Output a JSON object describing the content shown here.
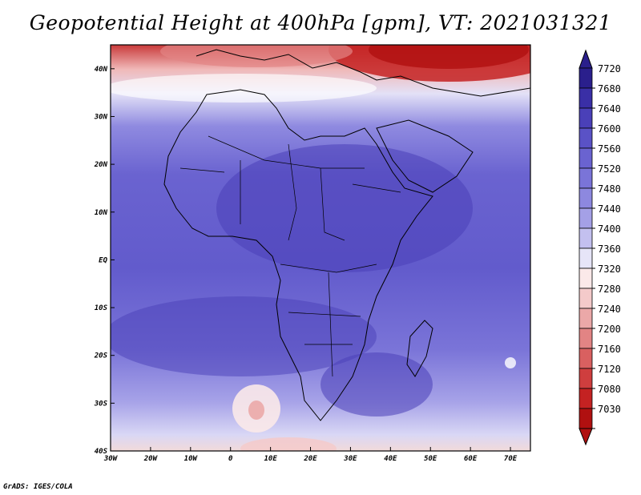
{
  "title": "Geopotential Height at 400hPa [gpm], VT: 2021031321",
  "credit": "GrADS: IGES/COLA",
  "map": {
    "lon_range": [
      -30,
      75
    ],
    "lat_range": [
      -40,
      45
    ],
    "lat_ticks": [
      {
        "value": 40,
        "label": "40N"
      },
      {
        "value": 30,
        "label": "30N"
      },
      {
        "value": 20,
        "label": "20N"
      },
      {
        "value": 10,
        "label": "10N"
      },
      {
        "value": 0,
        "label": "EQ"
      },
      {
        "value": -10,
        "label": "10S"
      },
      {
        "value": -20,
        "label": "20S"
      },
      {
        "value": -30,
        "label": "30S"
      },
      {
        "value": -40,
        "label": "40S"
      }
    ],
    "lon_ticks": [
      {
        "value": -30,
        "label": "30W"
      },
      {
        "value": -20,
        "label": "20W"
      },
      {
        "value": -10,
        "label": "10W"
      },
      {
        "value": 0,
        "label": "0"
      },
      {
        "value": 10,
        "label": "10E"
      },
      {
        "value": 20,
        "label": "20E"
      },
      {
        "value": 30,
        "label": "30E"
      },
      {
        "value": 40,
        "label": "40E"
      },
      {
        "value": 50,
        "label": "50E"
      },
      {
        "value": 60,
        "label": "60E"
      },
      {
        "value": 70,
        "label": "70E"
      }
    ]
  },
  "colorbar": {
    "levels": [
      "7720",
      "7680",
      "7640",
      "7600",
      "7560",
      "7520",
      "7480",
      "7440",
      "7400",
      "7360",
      "7320",
      "7280",
      "7240",
      "7200",
      "7160",
      "7120",
      "7080",
      "7030"
    ],
    "colors": [
      "#2a1f8c",
      "#3a2fa6",
      "#4a40b8",
      "#5a52c6",
      "#6a63d0",
      "#7a74d8",
      "#8d88df",
      "#a4a0e6",
      "#c3c0ef",
      "#e6e5f8",
      "#fbe9e9",
      "#f4caca",
      "#eba8a8",
      "#e28484",
      "#d96060",
      "#cf3e3e",
      "#c42222",
      "#b01010"
    ]
  }
}
